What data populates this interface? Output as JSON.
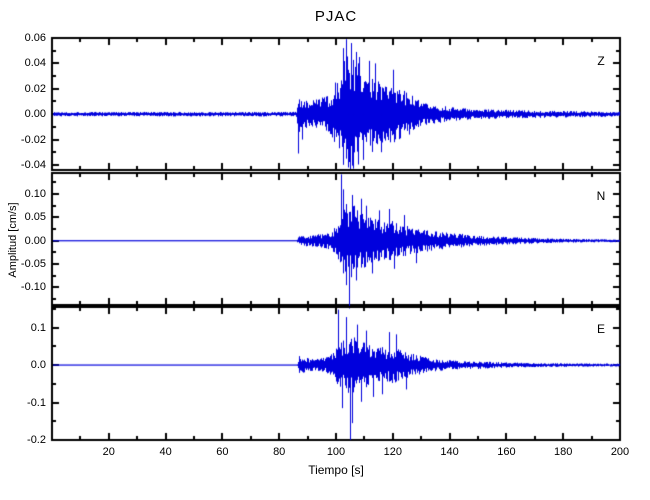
{
  "chart_data": {
    "type": "line",
    "title": "PJAC",
    "xlabel": "Tiempo [s]",
    "ylabel": "Amplitud [cm/s]",
    "line_color": "#0000dd",
    "axis_color": "#000000",
    "x_range": [
      0,
      200
    ],
    "xtick_values": [
      20,
      40,
      60,
      80,
      100,
      120,
      140,
      160,
      180,
      200
    ],
    "xtick_labels": [
      "20",
      "40",
      "60",
      "80",
      "100",
      "120",
      "140",
      "160",
      "180",
      "200"
    ],
    "xminor_values": [
      10,
      30,
      50,
      70,
      90,
      110,
      130,
      150,
      170,
      190
    ],
    "event_onset_s": 86.5,
    "panels": [
      {
        "label": "Z",
        "ylim": [
          -0.044,
          0.06
        ],
        "ytick_values": [
          0.06,
          0.04,
          0.02,
          0.0,
          -0.02,
          -0.04
        ],
        "ytick_labels": [
          "0.06",
          "0.04",
          "0.02",
          "0.00",
          "-0.02",
          "-0.04"
        ],
        "yminor_values": [
          0.05,
          0.03,
          0.01,
          -0.01,
          -0.03
        ],
        "noise_floor": 0.0018,
        "envelope": [
          [
            0,
            0.0018
          ],
          [
            85.5,
            0.0018
          ],
          [
            86,
            0.003
          ],
          [
            86.5,
            0.016
          ],
          [
            87.5,
            0.013
          ],
          [
            90,
            0.011
          ],
          [
            93,
            0.012
          ],
          [
            96,
            0.014
          ],
          [
            98,
            0.016
          ],
          [
            100,
            0.028
          ],
          [
            102,
            0.04
          ],
          [
            103.5,
            0.052
          ],
          [
            105,
            0.047
          ],
          [
            107,
            0.043
          ],
          [
            109,
            0.037
          ],
          [
            111,
            0.03
          ],
          [
            113,
            0.034
          ],
          [
            115,
            0.026
          ],
          [
            118,
            0.022
          ],
          [
            121,
            0.025
          ],
          [
            124,
            0.02
          ],
          [
            126,
            0.016
          ],
          [
            128,
            0.013
          ],
          [
            130,
            0.009
          ],
          [
            134,
            0.0075
          ],
          [
            138,
            0.0065
          ],
          [
            143,
            0.005
          ],
          [
            150,
            0.004
          ],
          [
            160,
            0.0035
          ],
          [
            175,
            0.0028
          ],
          [
            200,
            0.002
          ]
        ],
        "spikes": [
          [
            86.6,
            -0.031
          ],
          [
            88,
            -0.02
          ],
          [
            102.3,
            0.052
          ],
          [
            103.4,
            0.059
          ],
          [
            104.3,
            -0.042
          ],
          [
            105.2,
            0.056
          ],
          [
            106.1,
            -0.038
          ],
          [
            106.9,
            0.049
          ],
          [
            108.2,
            0.045
          ],
          [
            109.6,
            -0.036
          ],
          [
            111.5,
            0.042
          ],
          [
            113.6,
            0.04
          ],
          [
            116,
            -0.03
          ],
          [
            120,
            0.035
          ]
        ]
      },
      {
        "label": "N",
        "ylim": [
          -0.1375,
          0.145
        ],
        "ytick_values": [
          0.1,
          0.05,
          0.0,
          -0.05,
          -0.1
        ],
        "ytick_labels": [
          "0.10",
          "0.05",
          "0.00",
          "-0.05",
          "-0.10"
        ],
        "yminor_values": [
          0.125,
          0.075,
          0.025,
          -0.025,
          -0.075,
          -0.125
        ],
        "noise_floor": 0.0012,
        "envelope": [
          [
            0,
            0.0012
          ],
          [
            86,
            0.0012
          ],
          [
            86.5,
            0.006
          ],
          [
            87,
            0.01
          ],
          [
            89,
            0.012
          ],
          [
            92,
            0.013
          ],
          [
            95,
            0.015
          ],
          [
            98,
            0.02
          ],
          [
            100,
            0.032
          ],
          [
            101.5,
            0.055
          ],
          [
            103,
            0.08
          ],
          [
            104.5,
            0.085
          ],
          [
            106,
            0.078
          ],
          [
            108,
            0.068
          ],
          [
            110,
            0.058
          ],
          [
            112,
            0.052
          ],
          [
            114,
            0.048
          ],
          [
            116,
            0.043
          ],
          [
            118,
            0.045
          ],
          [
            120,
            0.042
          ],
          [
            123,
            0.036
          ],
          [
            126,
            0.03
          ],
          [
            129,
            0.027
          ],
          [
            132,
            0.023
          ],
          [
            136,
            0.019
          ],
          [
            140,
            0.017
          ],
          [
            144,
            0.015
          ],
          [
            148,
            0.012
          ],
          [
            153,
            0.01
          ],
          [
            158,
            0.009
          ],
          [
            165,
            0.007
          ],
          [
            175,
            0.005
          ],
          [
            185,
            0.004
          ],
          [
            200,
            0.003
          ]
        ],
        "spikes": [
          [
            101.8,
            0.142
          ],
          [
            102.6,
            0.11
          ],
          [
            103.5,
            -0.095
          ],
          [
            104.6,
            -0.145
          ],
          [
            105.8,
            0.098
          ],
          [
            107.2,
            -0.085
          ],
          [
            108.8,
            0.09
          ],
          [
            110.4,
            0.075
          ],
          [
            112.5,
            -0.07
          ],
          [
            115,
            0.065
          ],
          [
            118.5,
            0.068
          ],
          [
            120.5,
            -0.06
          ],
          [
            124,
            0.055
          ],
          [
            128,
            -0.048
          ]
        ]
      },
      {
        "label": "E",
        "ylim": [
          -0.2,
          0.155
        ],
        "ytick_values": [
          0.1,
          0.0,
          -0.1,
          -0.2
        ],
        "ytick_labels": [
          "0.1",
          "0.0",
          "-0.1",
          "-0.2"
        ],
        "yminor_values": [
          0.15,
          0.05,
          -0.05,
          -0.15
        ],
        "noise_floor": 0.0015,
        "envelope": [
          [
            0,
            0.0015
          ],
          [
            86,
            0.0015
          ],
          [
            86.5,
            0.008
          ],
          [
            87,
            0.026
          ],
          [
            88.5,
            0.022
          ],
          [
            90.5,
            0.018
          ],
          [
            93,
            0.017
          ],
          [
            96,
            0.02
          ],
          [
            98,
            0.028
          ],
          [
            100,
            0.048
          ],
          [
            101.5,
            0.062
          ],
          [
            103,
            0.075
          ],
          [
            105,
            0.082
          ],
          [
            107,
            0.075
          ],
          [
            109,
            0.068
          ],
          [
            111,
            0.062
          ],
          [
            113,
            0.055
          ],
          [
            115,
            0.05
          ],
          [
            117.5,
            0.046
          ],
          [
            120,
            0.049
          ],
          [
            122.5,
            0.042
          ],
          [
            125,
            0.035
          ],
          [
            128,
            0.028
          ],
          [
            131,
            0.022
          ],
          [
            134,
            0.018
          ],
          [
            138,
            0.014
          ],
          [
            142,
            0.012
          ],
          [
            146,
            0.01
          ],
          [
            150,
            0.011
          ],
          [
            154,
            0.009
          ],
          [
            160,
            0.007
          ],
          [
            170,
            0.0055
          ],
          [
            185,
            0.0045
          ],
          [
            200,
            0.004
          ]
        ],
        "spikes": [
          [
            100.8,
            0.148
          ],
          [
            102.2,
            -0.115
          ],
          [
            103.6,
            0.128
          ],
          [
            104.9,
            -0.2
          ],
          [
            105.8,
            -0.155
          ],
          [
            107.3,
            0.108
          ],
          [
            108.8,
            -0.098
          ],
          [
            110.6,
            0.092
          ],
          [
            113,
            -0.085
          ],
          [
            116.2,
            -0.078
          ],
          [
            118.8,
            0.088
          ],
          [
            121.2,
            0.082
          ],
          [
            124.5,
            -0.065
          ]
        ]
      }
    ],
    "seed": 1337
  }
}
